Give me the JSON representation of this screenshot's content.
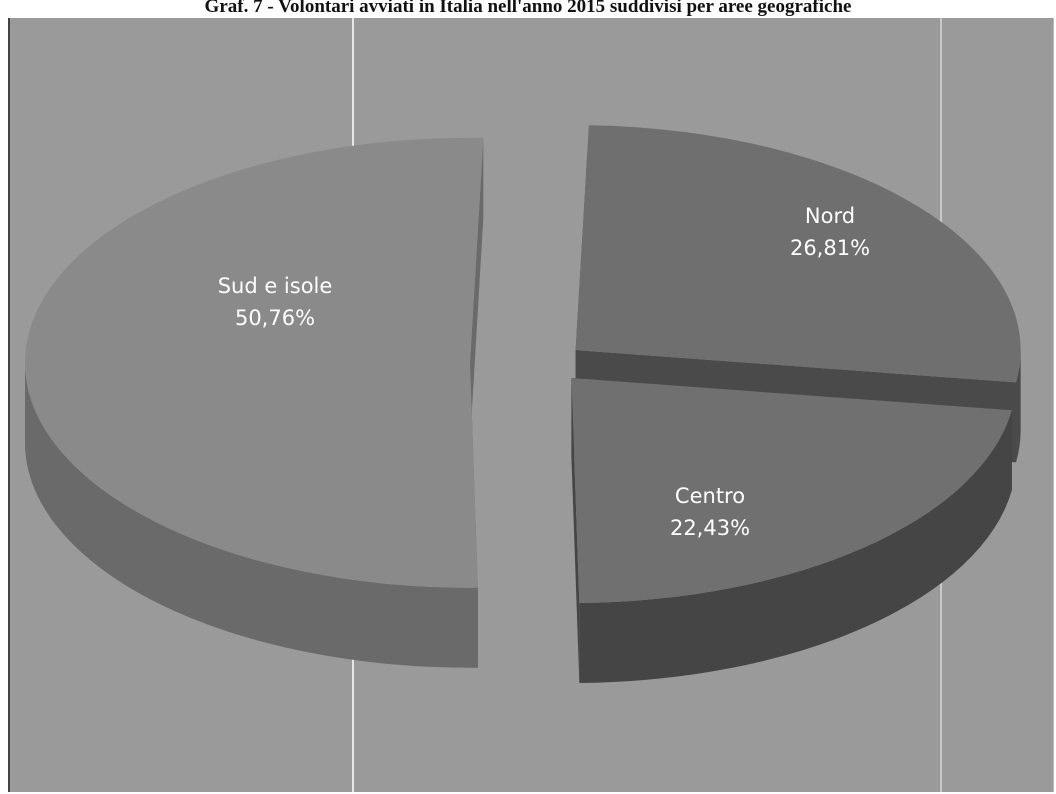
{
  "chart_data": {
    "type": "pie",
    "title": "Graf. 7 - Volontari avviati in Italia nell'anno 2015 suddivisi per aree geografiche",
    "slices": [
      {
        "category": "Sud e isole",
        "value": 50.76,
        "label": "50,76%"
      },
      {
        "category": "Nord",
        "value": 26.81,
        "label": "26,81%"
      },
      {
        "category": "Centro",
        "value": 22.43,
        "label": "22,43%"
      }
    ],
    "style": "3d-exploded",
    "legend": "none",
    "colors": {
      "background": "#9a9a9a",
      "Sud e isole_top": "#8a8a8a",
      "Sud e isole_side": "#6a6a6a",
      "Nord_top": "#6f6f6f",
      "Nord_side": "#4a4a4a",
      "Centro_top": "#707070",
      "Centro_side": "#454545"
    }
  }
}
